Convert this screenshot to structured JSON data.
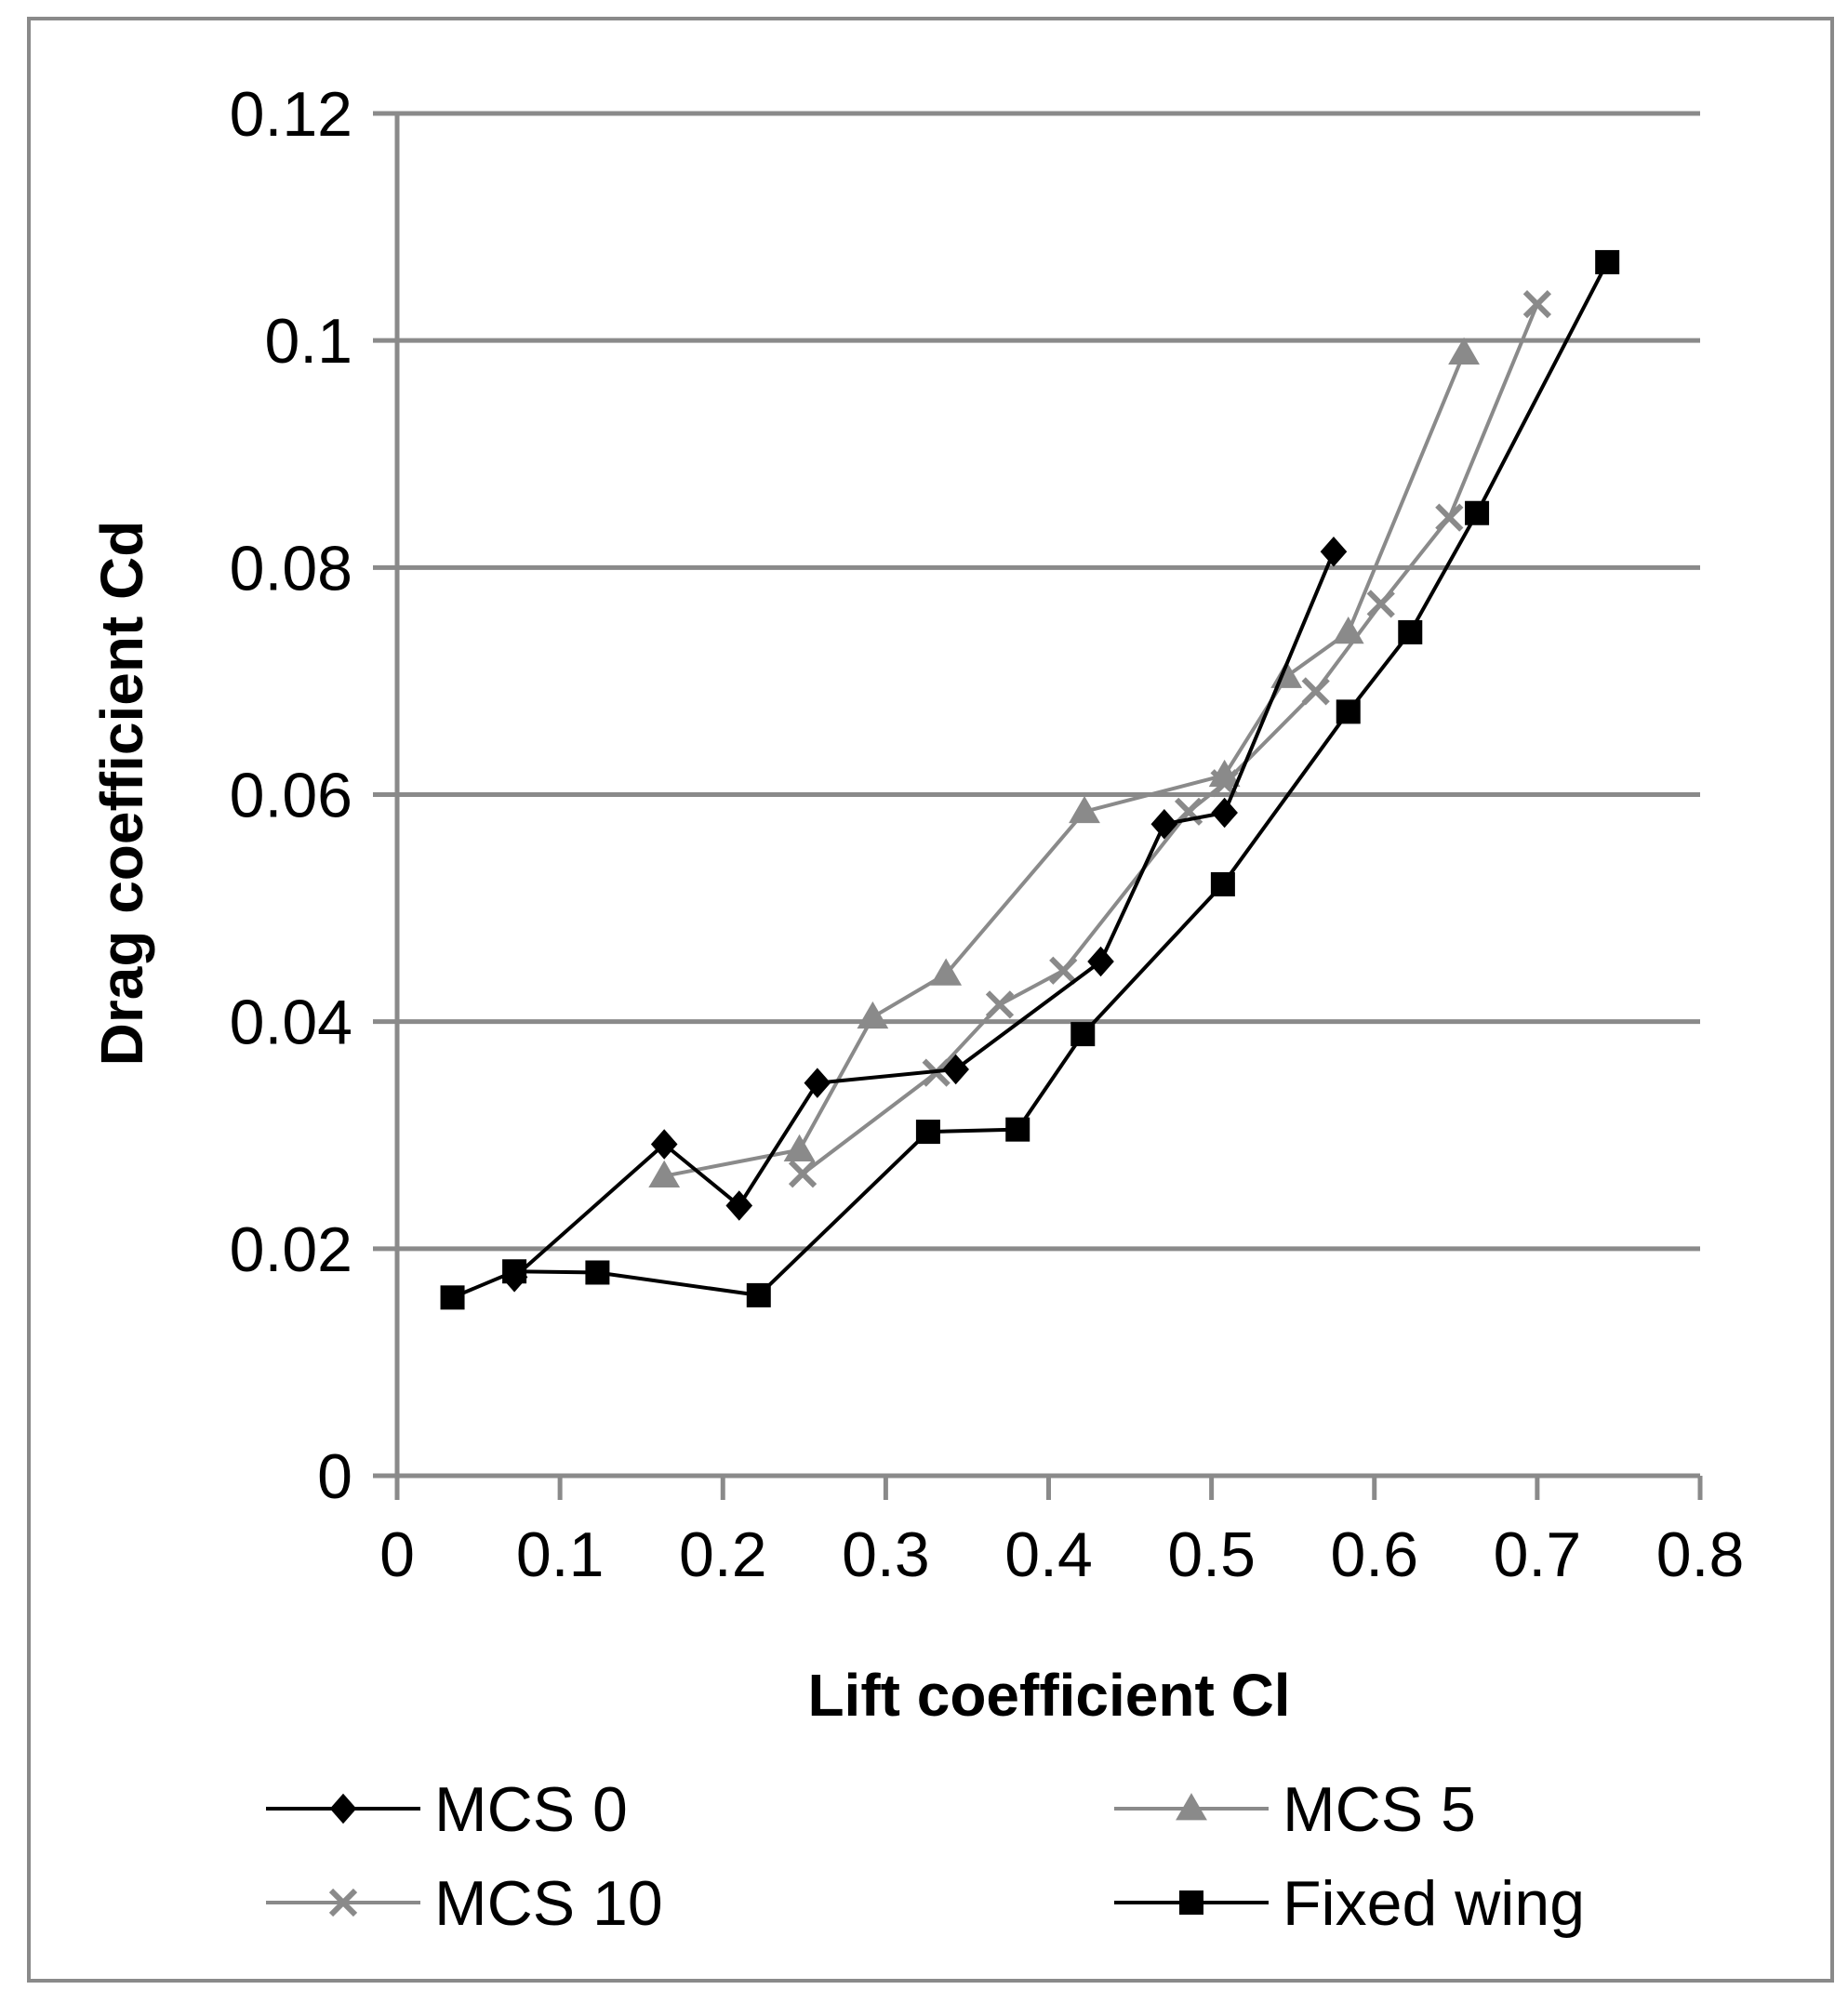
{
  "chart_data": {
    "type": "line",
    "title": "",
    "xlabel": "Lift coefficient Cl",
    "ylabel": "Drag coefficient Cd",
    "xlim": [
      0,
      0.8
    ],
    "ylim": [
      0,
      0.12
    ],
    "x_ticks": [
      "0",
      "0.1",
      "0.2",
      "0.3",
      "0.4",
      "0.5",
      "0.6",
      "0.7",
      "0.8"
    ],
    "y_ticks": [
      "0",
      "0.02",
      "0.04",
      "0.06",
      "0.08",
      "0.1",
      "0.12"
    ],
    "grid": "horizontal",
    "legend_position": "bottom",
    "series": [
      {
        "name": "MCS 0",
        "color": "#000000",
        "marker": "diamond",
        "points": [
          [
            0.072,
            0.0175
          ],
          [
            0.164,
            0.0292
          ],
          [
            0.21,
            0.0238
          ],
          [
            0.258,
            0.0346
          ],
          [
            0.343,
            0.0358
          ],
          [
            0.432,
            0.0453
          ],
          [
            0.471,
            0.0574
          ],
          [
            0.508,
            0.0584
          ],
          [
            0.575,
            0.0814
          ]
        ]
      },
      {
        "name": "MCS 5",
        "color": "#8a8a8a",
        "marker": "triangle",
        "points": [
          [
            0.164,
            0.0264
          ],
          [
            0.247,
            0.0287
          ],
          [
            0.292,
            0.0404
          ],
          [
            0.337,
            0.0442
          ],
          [
            0.422,
            0.0585
          ],
          [
            0.508,
            0.0617
          ],
          [
            0.546,
            0.0704
          ],
          [
            0.584,
            0.0743
          ],
          [
            0.655,
            0.0989
          ]
        ]
      },
      {
        "name": "MCS 10",
        "color": "#8a8a8a",
        "marker": "x",
        "points": [
          [
            0.249,
            0.0266
          ],
          [
            0.331,
            0.0355
          ],
          [
            0.37,
            0.0415
          ],
          [
            0.409,
            0.0445
          ],
          [
            0.486,
            0.0585
          ],
          [
            0.508,
            0.061
          ],
          [
            0.564,
            0.0691
          ],
          [
            0.604,
            0.0768
          ],
          [
            0.646,
            0.0844
          ],
          [
            0.7,
            0.1032
          ]
        ]
      },
      {
        "name": "Fixed wing",
        "color": "#000000",
        "marker": "square",
        "points": [
          [
            0.034,
            0.0157
          ],
          [
            0.072,
            0.018
          ],
          [
            0.123,
            0.0179
          ],
          [
            0.222,
            0.0159
          ],
          [
            0.326,
            0.0303
          ],
          [
            0.381,
            0.0305
          ],
          [
            0.421,
            0.0389
          ],
          [
            0.507,
            0.0521
          ],
          [
            0.584,
            0.0673
          ],
          [
            0.622,
            0.0743
          ],
          [
            0.663,
            0.0848
          ],
          [
            0.743,
            0.1069
          ]
        ]
      }
    ]
  }
}
